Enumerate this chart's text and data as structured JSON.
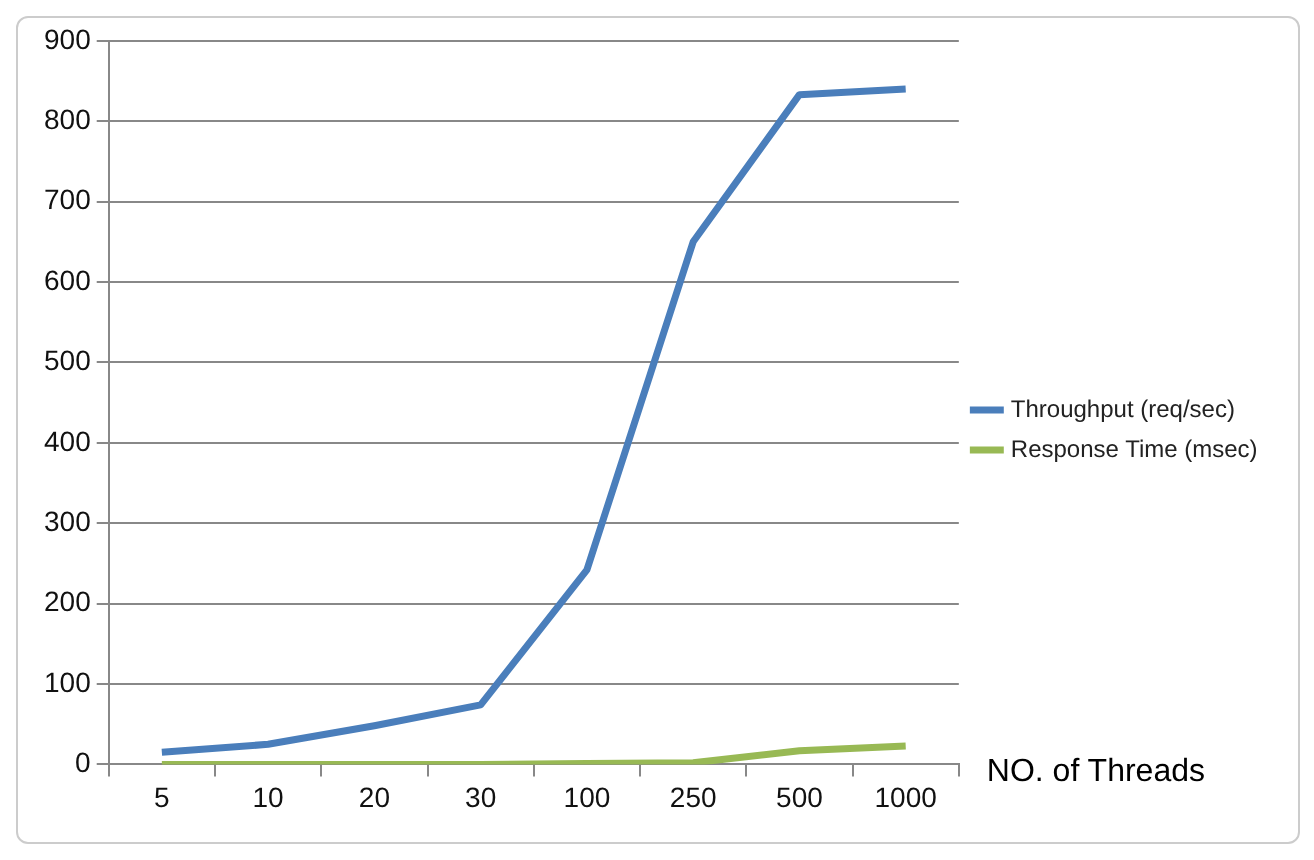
{
  "chart_data": {
    "type": "line",
    "xlabel": "NO. of Threads",
    "categories": [
      "5",
      "10",
      "20",
      "30",
      "100",
      "250",
      "500",
      "1000"
    ],
    "series": [
      {
        "name": "Throughput (req/sec)",
        "color": "#4a7ebb",
        "values": [
          15,
          25,
          48,
          74,
          242,
          650,
          833,
          840
        ]
      },
      {
        "name": "Response Time (msec)",
        "color": "#98b954",
        "values": [
          0,
          0,
          0,
          0,
          1,
          2,
          17,
          23
        ]
      }
    ],
    "ylim": [
      0,
      900
    ],
    "yticks": [
      0,
      100,
      200,
      300,
      400,
      500,
      600,
      700,
      800,
      900
    ],
    "grid": "y",
    "legend": "right",
    "marker": "none",
    "line_style": "solid"
  }
}
